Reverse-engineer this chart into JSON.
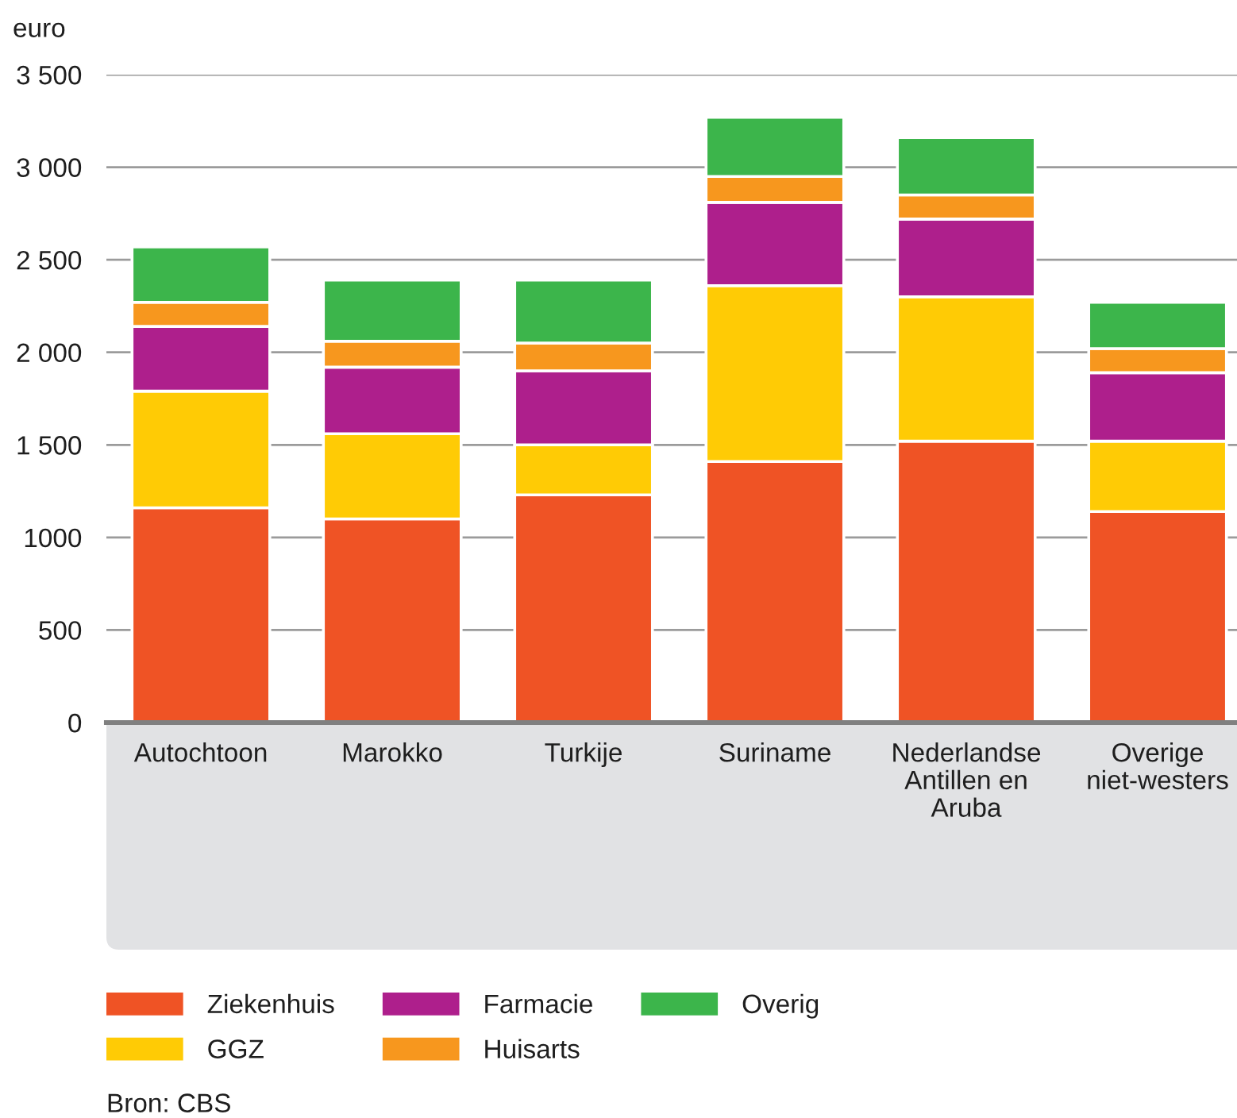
{
  "chart_data": {
    "type": "bar",
    "stacked": true,
    "ylabel": "euro",
    "categories": [
      "Autochtoon",
      "Marokko",
      "Turkije",
      "Suriname",
      "Nederlandse Antillen en Aruba",
      "Overige niet-westers"
    ],
    "series": [
      {
        "name": "Ziekenhuis",
        "color": "#ef5325",
        "values": [
          1160,
          1100,
          1230,
          1410,
          1520,
          1140
        ]
      },
      {
        "name": "GGZ",
        "color": "#ffcb05",
        "values": [
          630,
          460,
          270,
          950,
          780,
          380
        ]
      },
      {
        "name": "Farmacie",
        "color": "#ae1f8c",
        "values": [
          350,
          360,
          400,
          450,
          420,
          370
        ]
      },
      {
        "name": "Huisarts",
        "color": "#f7971e",
        "values": [
          130,
          140,
          150,
          140,
          130,
          130
        ]
      },
      {
        "name": "Overig",
        "color": "#3cb54b",
        "values": [
          300,
          330,
          340,
          320,
          310,
          250
        ]
      }
    ],
    "ylim": [
      0,
      3500
    ],
    "yticks": [
      0,
      500,
      1000,
      {
        "value": 1500,
        "label": "1 500"
      },
      {
        "value": 2000,
        "label": "2 000"
      },
      {
        "value": 2500,
        "label": "2 500"
      },
      {
        "value": 3000,
        "label": "3 000"
      },
      {
        "value": 3500,
        "label": "3 500"
      }
    ],
    "grid": "y",
    "legend": "bottom",
    "annotations": [
      "Bron: CBS"
    ]
  }
}
